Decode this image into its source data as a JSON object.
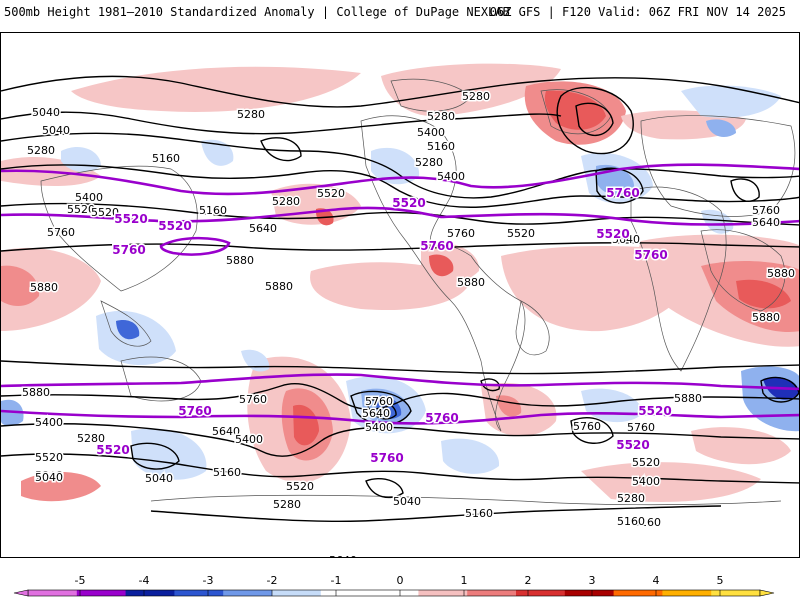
{
  "header": {
    "left_title": "500mb Height 1981–2010 Standardized Anomaly | College of DuPage NEXLAB",
    "right_title": "06Z GFS | F120 Valid: 06Z FRI NOV 14 2025"
  },
  "colors": {
    "pos_light": "#f6c6c6",
    "pos_mid": "#f08c8c",
    "pos_strong": "#e85a5a",
    "neg_light": "#cfe0fa",
    "neg_mid": "#8fb1ee",
    "neg_strong": "#3f67d8",
    "neg_deep": "#1f2fb8",
    "contour": "#000000",
    "ref_contour": "#9900cc",
    "coast": "#555555"
  },
  "contour_labels": {
    "black": [
      "5280",
      "5040",
      "5280",
      "5280",
      "5160",
      "5400",
      "5280",
      "5280",
      "5160",
      "5400",
      "5520",
      "5040",
      "5160",
      "5280",
      "5520",
      "5760",
      "5640",
      "5760",
      "5880",
      "5880",
      "5880",
      "5640",
      "5520",
      "5880",
      "5400",
      "5520",
      "5760",
      "5640",
      "5880",
      "5880",
      "5880",
      "5760",
      "5400",
      "5640",
      "5760",
      "5400",
      "5280",
      "5640",
      "5760",
      "5520",
      "5400",
      "5280",
      "5160",
      "5040",
      "5760",
      "5520",
      "5040",
      "5160",
      "5280",
      "5040",
      "5640",
      "5400",
      "5160",
      "5520",
      "5880",
      "5040",
      "5160",
      "5400"
    ],
    "purple": [
      "5520",
      "5520",
      "5760",
      "5520",
      "5760",
      "5520",
      "5760",
      "5760",
      "5760",
      "5760",
      "5520",
      "5520",
      "5760",
      "5520"
    ]
  },
  "colorbar": {
    "ticks": [
      "-5",
      "-4",
      "-3",
      "-2",
      "-1",
      "0",
      "1",
      "2",
      "3",
      "4",
      "5"
    ],
    "colors": [
      "#e070e0",
      "#9900cc",
      "#0a1f9e",
      "#2c55d0",
      "#6f98e8",
      "#c6dcf8",
      "#ffffff",
      "#ffffff",
      "#f5c0c0",
      "#ec7c7c",
      "#d83030",
      "#a80000",
      "#ff6a00",
      "#ffb000",
      "#ffe040"
    ]
  }
}
